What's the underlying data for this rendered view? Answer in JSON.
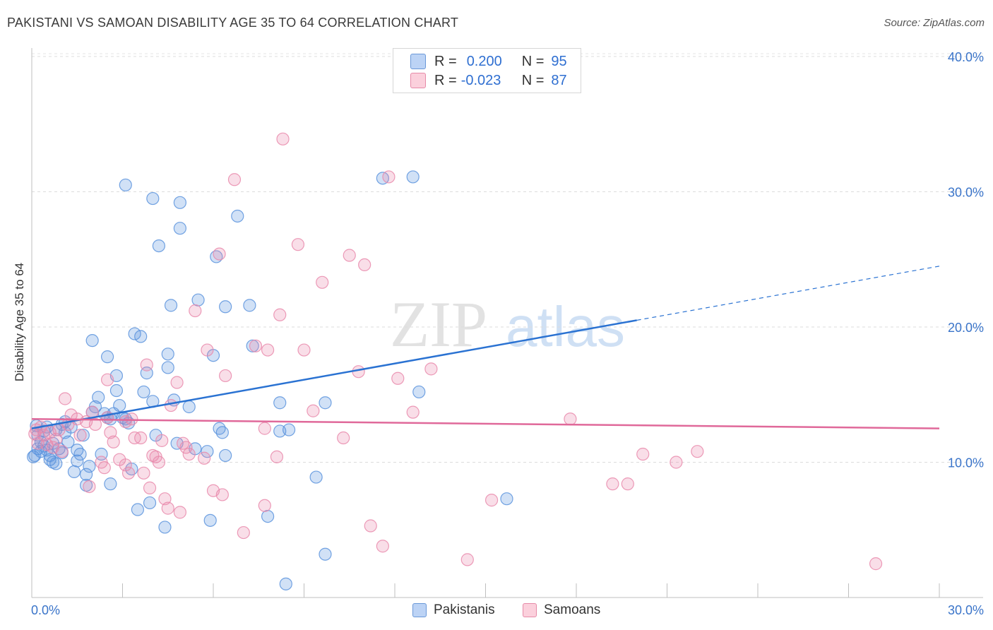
{
  "title": "PAKISTANI VS SAMOAN DISABILITY AGE 35 TO 64 CORRELATION CHART",
  "source": "Source: ZipAtlas.com",
  "watermark": {
    "part1": "ZIP",
    "part2": "atlas"
  },
  "colors": {
    "pakistanis": "#5b93dd",
    "samoans": "#e98aab",
    "pakistanis_line": "#2a72d2",
    "samoans_line": "#e0699a",
    "axis_label": "#3a74c9"
  },
  "stats": {
    "pakistanis": {
      "r_label": "R =",
      "r_value": "0.200",
      "n_label": "N =",
      "n_value": "95"
    },
    "samoans": {
      "r_label": "R =",
      "r_value": "-0.023",
      "n_label": "N =",
      "n_value": "87"
    }
  },
  "chart_data": {
    "type": "scatter",
    "title": "PAKISTANI VS SAMOAN DISABILITY AGE 35 TO 64 CORRELATION CHART",
    "xlabel": "",
    "ylabel": "Disability Age 35 to 64",
    "xlim": [
      0,
      30
    ],
    "ylim": [
      0,
      40
    ],
    "x_tick_labels": [
      "0.0%",
      "30.0%"
    ],
    "y_ticks": [
      10,
      20,
      30,
      40
    ],
    "y_tick_labels": [
      "10.0%",
      "20.0%",
      "30.0%",
      "40.0%"
    ],
    "grid": true,
    "legend_position": "bottom-center",
    "series": [
      {
        "name": "Pakistanis",
        "trend": {
          "x0": 0,
          "y0": 12.5,
          "x1": 20,
          "y1": 20.5,
          "x_dash_end": 30,
          "y_dash_end": 24.5
        },
        "points": [
          [
            0.1,
            10.5
          ],
          [
            0.2,
            11.0
          ],
          [
            0.2,
            12.0
          ],
          [
            0.3,
            11.5
          ],
          [
            0.3,
            10.8
          ],
          [
            0.4,
            12.3
          ],
          [
            0.4,
            11.2
          ],
          [
            0.5,
            10.9
          ],
          [
            0.5,
            12.6
          ],
          [
            0.6,
            10.5
          ],
          [
            0.6,
            10.2
          ],
          [
            0.7,
            11.4
          ],
          [
            0.7,
            10.0
          ],
          [
            0.8,
            12.4
          ],
          [
            0.8,
            9.9
          ],
          [
            0.9,
            11.0
          ],
          [
            1.0,
            12.8
          ],
          [
            1.0,
            10.7
          ],
          [
            1.1,
            13.0
          ],
          [
            1.1,
            12.2
          ],
          [
            1.2,
            11.5
          ],
          [
            1.3,
            12.6
          ],
          [
            1.4,
            9.3
          ],
          [
            1.5,
            10.1
          ],
          [
            1.5,
            10.9
          ],
          [
            1.6,
            10.6
          ],
          [
            1.7,
            12.0
          ],
          [
            1.8,
            9.1
          ],
          [
            1.8,
            8.3
          ],
          [
            1.9,
            9.7
          ],
          [
            2.0,
            13.7
          ],
          [
            2.0,
            19.0
          ],
          [
            2.1,
            14.1
          ],
          [
            2.2,
            14.8
          ],
          [
            2.3,
            10.6
          ],
          [
            2.4,
            13.6
          ],
          [
            2.5,
            13.3
          ],
          [
            2.5,
            17.8
          ],
          [
            2.6,
            8.4
          ],
          [
            2.6,
            13.2
          ],
          [
            2.7,
            13.6
          ],
          [
            2.8,
            15.3
          ],
          [
            2.8,
            16.4
          ],
          [
            2.9,
            14.2
          ],
          [
            3.0,
            13.3
          ],
          [
            3.1,
            13.2
          ],
          [
            3.1,
            30.5
          ],
          [
            3.2,
            12.9
          ],
          [
            3.3,
            9.5
          ],
          [
            3.4,
            19.5
          ],
          [
            3.5,
            6.5
          ],
          [
            3.6,
            19.3
          ],
          [
            3.7,
            15.2
          ],
          [
            3.8,
            16.6
          ],
          [
            3.9,
            7.0
          ],
          [
            4.0,
            14.5
          ],
          [
            4.0,
            29.5
          ],
          [
            4.1,
            12.0
          ],
          [
            4.2,
            26.0
          ],
          [
            4.4,
            5.2
          ],
          [
            4.5,
            17.0
          ],
          [
            4.5,
            18.0
          ],
          [
            4.6,
            21.6
          ],
          [
            4.7,
            14.6
          ],
          [
            4.8,
            11.4
          ],
          [
            4.9,
            27.3
          ],
          [
            4.9,
            29.2
          ],
          [
            5.2,
            14.1
          ],
          [
            5.4,
            11.0
          ],
          [
            5.5,
            22.0
          ],
          [
            5.8,
            10.8
          ],
          [
            5.9,
            5.7
          ],
          [
            6.0,
            17.9
          ],
          [
            6.1,
            25.2
          ],
          [
            6.2,
            12.5
          ],
          [
            6.3,
            12.2
          ],
          [
            6.4,
            10.5
          ],
          [
            6.4,
            21.5
          ],
          [
            6.8,
            28.2
          ],
          [
            7.2,
            21.6
          ],
          [
            7.3,
            18.6
          ],
          [
            7.8,
            6.0
          ],
          [
            8.2,
            12.3
          ],
          [
            8.2,
            14.4
          ],
          [
            8.4,
            1.0
          ],
          [
            8.5,
            12.4
          ],
          [
            9.4,
            8.9
          ],
          [
            9.7,
            14.4
          ],
          [
            9.7,
            3.2
          ],
          [
            11.6,
            31.0
          ],
          [
            12.6,
            31.1
          ],
          [
            12.8,
            15.2
          ],
          [
            15.7,
            7.3
          ],
          [
            0.05,
            10.4
          ],
          [
            0.15,
            12.7
          ]
        ]
      },
      {
        "name": "Samoans",
        "trend": {
          "x0": 0,
          "y0": 13.2,
          "x1": 30,
          "y1": 12.5
        },
        "points": [
          [
            0.1,
            12.1
          ],
          [
            0.2,
            11.4
          ],
          [
            0.3,
            12.6
          ],
          [
            0.4,
            12.0
          ],
          [
            0.5,
            11.3
          ],
          [
            0.6,
            12.2
          ],
          [
            0.7,
            11.1
          ],
          [
            0.8,
            11.7
          ],
          [
            0.9,
            12.4
          ],
          [
            1.0,
            10.8
          ],
          [
            1.1,
            14.7
          ],
          [
            1.2,
            12.8
          ],
          [
            1.3,
            13.5
          ],
          [
            1.5,
            13.2
          ],
          [
            1.6,
            12.0
          ],
          [
            1.8,
            13.0
          ],
          [
            1.9,
            8.2
          ],
          [
            2.0,
            13.7
          ],
          [
            2.1,
            12.8
          ],
          [
            2.3,
            10.0
          ],
          [
            2.4,
            9.6
          ],
          [
            2.5,
            13.3
          ],
          [
            2.5,
            16.1
          ],
          [
            2.6,
            12.2
          ],
          [
            2.7,
            11.5
          ],
          [
            2.9,
            10.2
          ],
          [
            3.1,
            13.0
          ],
          [
            3.1,
            9.8
          ],
          [
            3.2,
            9.2
          ],
          [
            3.3,
            13.2
          ],
          [
            3.4,
            11.8
          ],
          [
            3.6,
            11.8
          ],
          [
            3.7,
            9.2
          ],
          [
            3.8,
            17.2
          ],
          [
            3.9,
            8.1
          ],
          [
            4.0,
            10.5
          ],
          [
            4.1,
            10.4
          ],
          [
            4.2,
            10.0
          ],
          [
            4.3,
            11.6
          ],
          [
            4.4,
            7.3
          ],
          [
            4.5,
            6.6
          ],
          [
            4.6,
            14.2
          ],
          [
            4.8,
            15.9
          ],
          [
            4.9,
            6.3
          ],
          [
            5.0,
            11.4
          ],
          [
            5.1,
            11.1
          ],
          [
            5.2,
            10.6
          ],
          [
            5.4,
            21.2
          ],
          [
            5.7,
            10.3
          ],
          [
            5.8,
            18.3
          ],
          [
            6.0,
            7.9
          ],
          [
            6.2,
            25.4
          ],
          [
            6.3,
            7.6
          ],
          [
            6.4,
            16.4
          ],
          [
            6.7,
            30.9
          ],
          [
            7.0,
            4.8
          ],
          [
            7.4,
            18.6
          ],
          [
            7.7,
            6.8
          ],
          [
            7.7,
            12.5
          ],
          [
            7.8,
            18.3
          ],
          [
            8.1,
            10.4
          ],
          [
            8.2,
            20.9
          ],
          [
            8.3,
            33.9
          ],
          [
            8.8,
            26.1
          ],
          [
            9.0,
            18.3
          ],
          [
            9.3,
            13.8
          ],
          [
            9.6,
            23.3
          ],
          [
            10.3,
            11.8
          ],
          [
            10.5,
            25.3
          ],
          [
            10.8,
            16.7
          ],
          [
            11.0,
            24.6
          ],
          [
            11.2,
            5.3
          ],
          [
            11.6,
            3.8
          ],
          [
            11.8,
            31.1
          ],
          [
            12.1,
            16.2
          ],
          [
            12.6,
            13.7
          ],
          [
            13.2,
            16.9
          ],
          [
            14.4,
            2.8
          ],
          [
            15.2,
            7.2
          ],
          [
            17.8,
            13.2
          ],
          [
            19.2,
            8.4
          ],
          [
            19.7,
            8.4
          ],
          [
            20.2,
            10.6
          ],
          [
            21.3,
            10.0
          ],
          [
            22.0,
            10.8
          ],
          [
            27.9,
            2.5
          ],
          [
            0.15,
            12.4
          ]
        ]
      }
    ]
  }
}
